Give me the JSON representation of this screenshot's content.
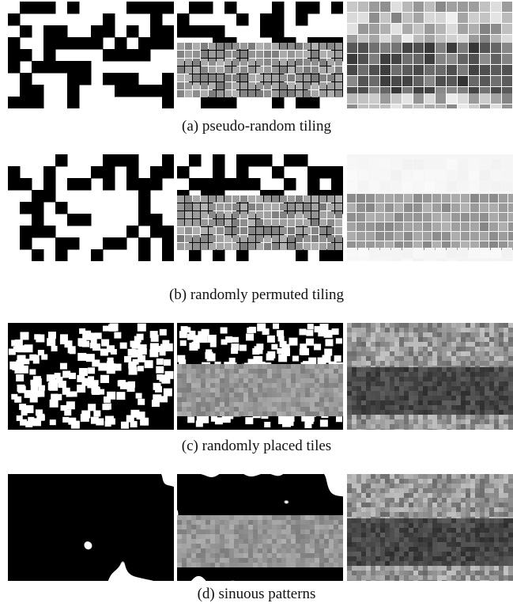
{
  "figure": {
    "rows": [
      {
        "id": "a",
        "caption": "(a) pseudo-random tiling",
        "style": "tiles",
        "right_panel": "gray-grid"
      },
      {
        "id": "b",
        "caption": "(b) randomly permuted tiling",
        "style": "tiles",
        "right_panel": "faint-grid"
      },
      {
        "id": "c",
        "caption": "(c) randomly placed tiles",
        "style": "scatter",
        "right_panel": "noise"
      },
      {
        "id": "d",
        "caption": "(d) sinuous patterns",
        "style": "blobs",
        "right_panel": "noise"
      }
    ]
  },
  "colors": {
    "black": "#000000",
    "white": "#ffffff"
  }
}
